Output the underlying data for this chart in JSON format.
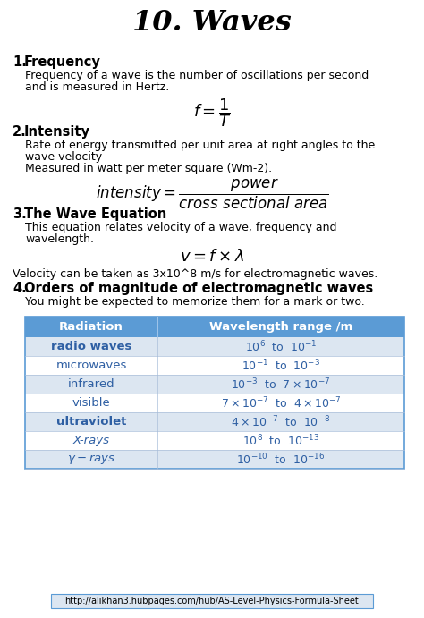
{
  "title": "10. Waves",
  "bg_color": "#ffffff",
  "title_color": "#000000",
  "header_bg": "#5b9bd5",
  "row_alt_bg": "#dce6f1",
  "row_white_bg": "#ffffff",
  "table_text_color": "#2e5fa3",
  "header_text_color": "#ffffff",
  "url": "http://alikhan3.hubpages.com/hub/AS-Level-Physics-Formula-Sheet",
  "sections": [
    {
      "number": "1.",
      "heading": "Frequency",
      "body_lines": [
        "Frequency of a wave is the number of oscillations per second",
        "and is measured in Hertz."
      ],
      "formula": "$f = \\dfrac{1}{T}$"
    },
    {
      "number": "2.",
      "heading": "Intensity",
      "body_lines": [
        "Rate of energy transmitted per unit area at right angles to the",
        "wave velocity",
        "Measured in watt per meter square (Wm-2)."
      ],
      "formula": "$intensity = \\dfrac{power}{cross\\ sectional\\ area}$"
    },
    {
      "number": "3.",
      "heading": "The Wave Equation",
      "body_lines": [
        "This equation relates velocity of a wave, frequency and",
        "wavelength."
      ],
      "formula": "$v = f \\times \\lambda$",
      "extra_line": "Velocity can be taken as 3x10^8 m/s for electromagnetic waves."
    },
    {
      "number": "4.",
      "heading": "Orders of magnitude of electromagnetic waves",
      "body_lines": [
        "You might be expected to memorize them for a mark or two."
      ]
    }
  ],
  "table_headers": [
    "Radiation",
    "Wavelength range /m"
  ],
  "table_rows": [
    [
      "radio waves",
      "$10^{6}$  to  $10^{-1}$"
    ],
    [
      "microwaves",
      "$10^{-1}$  to  $10^{-3}$"
    ],
    [
      "infrared",
      "$10^{-3}$  to  $7 \\times 10^{-7}$"
    ],
    [
      "visible",
      "$7 \\times 10^{-7}$  to  $4 \\times 10^{-7}$"
    ],
    [
      "ultraviolet",
      "$4 \\times 10^{-7}$  to  $10^{-8}$"
    ],
    [
      "X-rays",
      "$10^{8}$  to  $10^{-13}$"
    ],
    [
      "$\\gamma - rays$",
      "$10^{-10}$  to  $10^{-16}$"
    ]
  ],
  "bold_rows": [
    1,
    5
  ],
  "italic_rows": [
    6
  ]
}
